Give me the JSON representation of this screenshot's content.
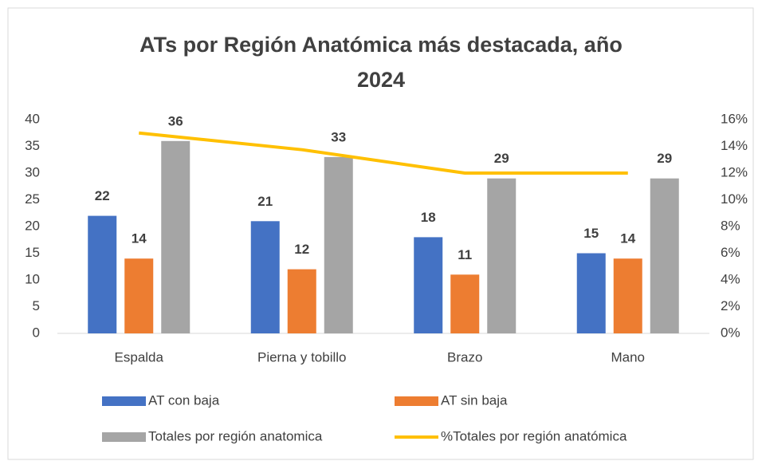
{
  "chart_data": {
    "type": "bar_line",
    "title": "ATs por Región Anatómica más destacada, año 2024",
    "categories": [
      "Espalda",
      "Pierna y tobillo",
      "Brazo",
      "Mano"
    ],
    "series": [
      {
        "name": "AT con baja",
        "color": "#4472c4",
        "values": [
          22,
          21,
          18,
          15
        ]
      },
      {
        "name": "AT sin baja",
        "color": "#ed7d31",
        "values": [
          14,
          12,
          11,
          14
        ]
      },
      {
        "name": "Totales por región anatomica",
        "color": "#a5a5a5",
        "values": [
          36,
          33,
          29,
          29
        ]
      },
      {
        "name": "%Totales por región anatómica",
        "color": "#ffc000",
        "values": [
          15,
          13.75,
          12,
          12
        ],
        "axis": "y2",
        "kind": "line"
      }
    ],
    "ylim": [
      0,
      40
    ],
    "yticks": [
      0,
      5,
      10,
      15,
      20,
      25,
      30,
      35,
      40
    ],
    "y2lim": [
      0,
      16
    ],
    "y2ticks": [
      {
        "value": 0,
        "label": "0%"
      },
      {
        "value": 2,
        "label": "2%"
      },
      {
        "value": 4,
        "label": "4%"
      },
      {
        "value": 6,
        "label": "6%"
      },
      {
        "value": 8,
        "label": "8%"
      },
      {
        "value": 10,
        "label": "10%"
      },
      {
        "value": 12,
        "label": "12%"
      },
      {
        "value": 14,
        "label": "14%"
      },
      {
        "value": 16,
        "label": "16%"
      }
    ],
    "grid": false,
    "legend": "bottom"
  }
}
